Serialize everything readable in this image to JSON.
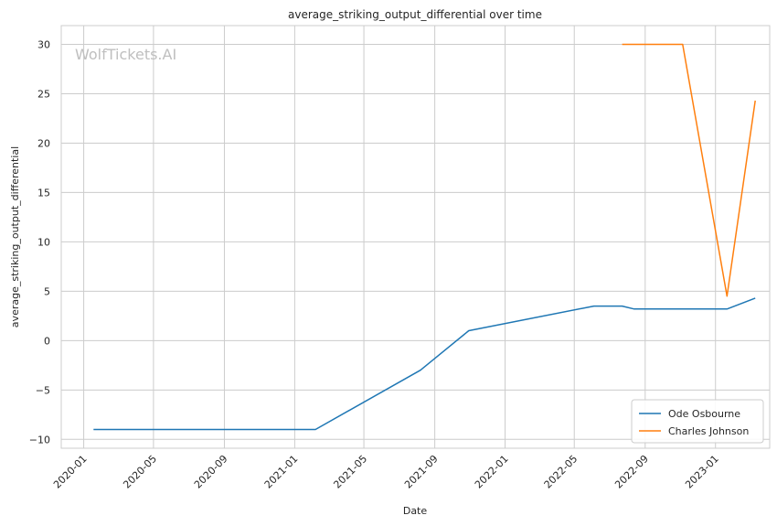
{
  "chart_data": {
    "type": "line",
    "title": "average_striking_output_differential over time",
    "xlabel": "Date",
    "ylabel": "average_striking_output_differential",
    "watermark": "WolfTickets.AI",
    "grid": true,
    "legend_position": "lower-right",
    "x_type": "date",
    "xlim": [
      "2019-11-23",
      "2023-04-05"
    ],
    "ylim": [
      -10.9,
      31.9
    ],
    "x_ticks": [
      {
        "date": "2020-01-01",
        "label": "2020-01"
      },
      {
        "date": "2020-05-01",
        "label": "2020-05"
      },
      {
        "date": "2020-09-01",
        "label": "2020-09"
      },
      {
        "date": "2021-01-01",
        "label": "2021-01"
      },
      {
        "date": "2021-05-01",
        "label": "2021-05"
      },
      {
        "date": "2021-09-01",
        "label": "2021-09"
      },
      {
        "date": "2022-01-01",
        "label": "2022-01"
      },
      {
        "date": "2022-05-01",
        "label": "2022-05"
      },
      {
        "date": "2022-09-01",
        "label": "2022-09"
      },
      {
        "date": "2023-01-01",
        "label": "2023-01"
      }
    ],
    "y_ticks": [
      {
        "value": -10,
        "label": "−10"
      },
      {
        "value": -5,
        "label": "−5"
      },
      {
        "value": 0,
        "label": "0"
      },
      {
        "value": 5,
        "label": "5"
      },
      {
        "value": 10,
        "label": "10"
      },
      {
        "value": 15,
        "label": "15"
      },
      {
        "value": 20,
        "label": "20"
      },
      {
        "value": 25,
        "label": "25"
      },
      {
        "value": 30,
        "label": "30"
      }
    ],
    "series": [
      {
        "name": "Ode Osbourne",
        "color": "#1f77b4",
        "points": [
          {
            "x": "2020-01-18",
            "y": -9.0
          },
          {
            "x": "2021-02-06",
            "y": -9.0
          },
          {
            "x": "2021-08-07",
            "y": -3.0
          },
          {
            "x": "2021-10-30",
            "y": 1.0
          },
          {
            "x": "2022-06-04",
            "y": 3.5
          },
          {
            "x": "2022-07-23",
            "y": 3.5
          },
          {
            "x": "2022-08-13",
            "y": 3.2
          },
          {
            "x": "2023-01-21",
            "y": 3.2
          },
          {
            "x": "2023-03-11",
            "y": 4.3
          }
        ]
      },
      {
        "name": "Charles Johnson",
        "color": "#ff7f0e",
        "points": [
          {
            "x": "2022-07-23",
            "y": 30.0
          },
          {
            "x": "2022-11-05",
            "y": 30.0
          },
          {
            "x": "2023-01-21",
            "y": 4.5
          },
          {
            "x": "2023-03-11",
            "y": 24.3
          }
        ]
      }
    ]
  }
}
